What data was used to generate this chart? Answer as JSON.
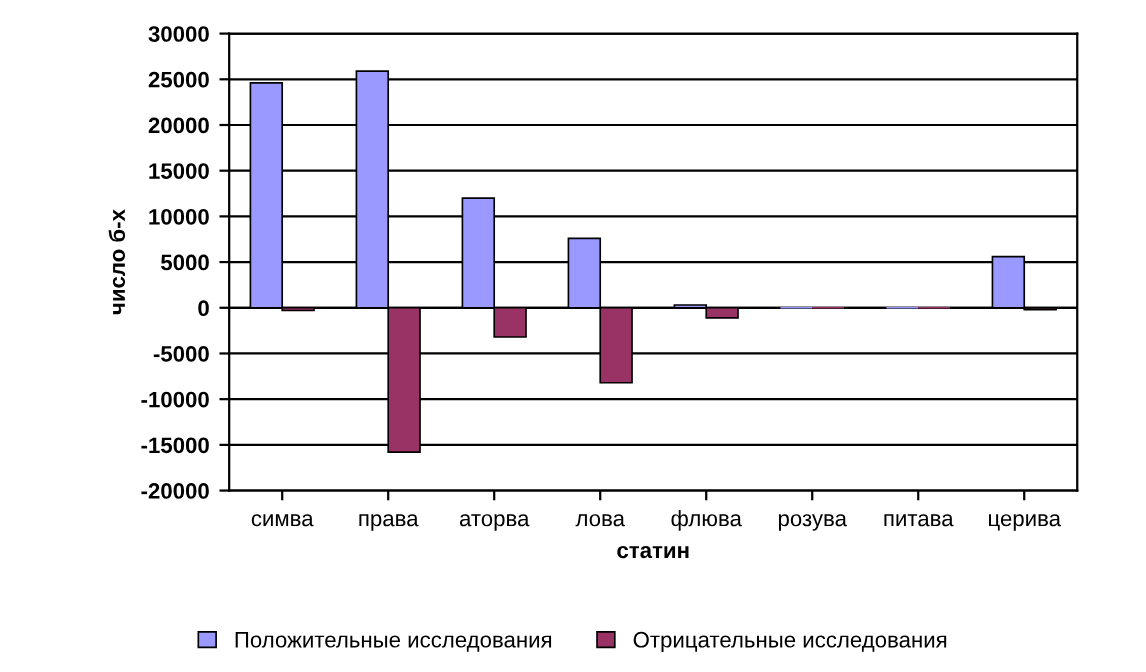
{
  "chart_data": {
    "type": "bar",
    "xlabel": "статин",
    "ylabel": "число б-х",
    "categories": [
      "симва",
      "права",
      "аторва",
      "лова",
      "флюва",
      "розува",
      "питава",
      "церива"
    ],
    "series": [
      {
        "name": "Положительные исследования",
        "color": "#9999ff",
        "values": [
          24600,
          25900,
          12000,
          7600,
          300,
          0,
          0,
          5600
        ]
      },
      {
        "name": "Отрицательные исследования",
        "color": "#993366",
        "values": [
          -300,
          -15800,
          -3200,
          -8200,
          -1100,
          0,
          0,
          -200
        ]
      }
    ],
    "ylim": [
      -20000,
      30000
    ],
    "yticks": [
      -20000,
      -15000,
      -10000,
      -5000,
      0,
      5000,
      10000,
      15000,
      20000,
      25000,
      30000
    ],
    "grid": "y",
    "legend": "bottom"
  }
}
